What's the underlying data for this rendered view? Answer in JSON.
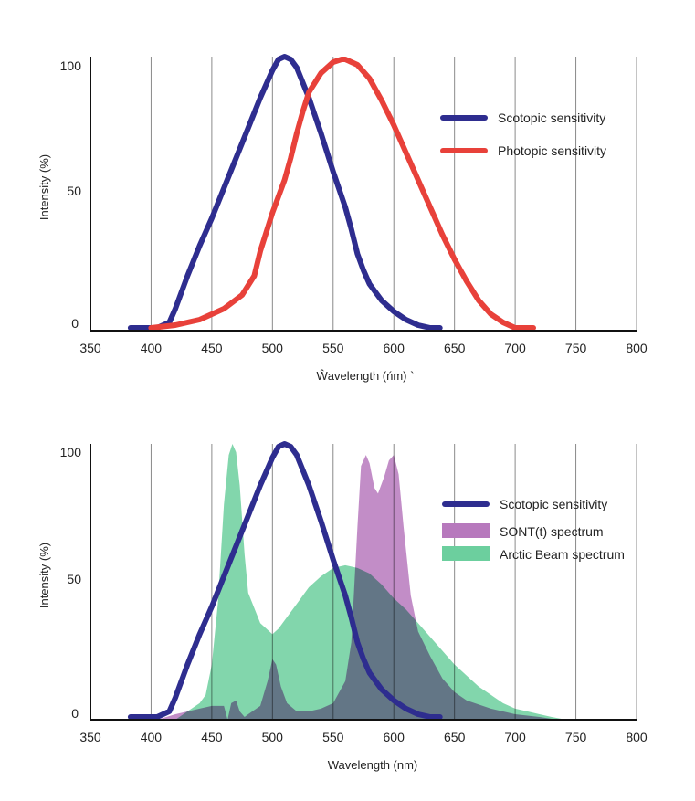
{
  "chart_data": [
    {
      "type": "line",
      "title": "",
      "xlabel": "Wavelength (nm)",
      "ylabel": "Intensity (%)",
      "xlim": [
        350,
        800
      ],
      "ylim": [
        0,
        100
      ],
      "x_ticks": [
        350,
        400,
        450,
        500,
        550,
        600,
        650,
        700,
        750,
        800
      ],
      "y_ticks": [
        0,
        50,
        100
      ],
      "grid": "vertical",
      "legend": "top-right",
      "series": [
        {
          "name": "Scotopic sensitivity",
          "color": "#2e2d8f",
          "kind": "line",
          "points": [
            [
              383,
              1
            ],
            [
              395,
              1
            ],
            [
              405,
              1
            ],
            [
              415,
              3
            ],
            [
              420,
              8
            ],
            [
              430,
              20
            ],
            [
              440,
              31
            ],
            [
              450,
              41
            ],
            [
              460,
              52
            ],
            [
              470,
              63
            ],
            [
              480,
              74
            ],
            [
              490,
              85
            ],
            [
              500,
              95
            ],
            [
              505,
              99
            ],
            [
              510,
              100
            ],
            [
              515,
              99
            ],
            [
              520,
              96
            ],
            [
              530,
              85
            ],
            [
              540,
              72
            ],
            [
              550,
              58
            ],
            [
              560,
              45
            ],
            [
              565,
              37
            ],
            [
              570,
              28
            ],
            [
              575,
              22
            ],
            [
              580,
              17
            ],
            [
              590,
              11
            ],
            [
              600,
              7
            ],
            [
              610,
              4
            ],
            [
              620,
              2
            ],
            [
              630,
              1
            ],
            [
              638,
              1
            ]
          ]
        },
        {
          "name": "Photopic sensitivity",
          "color": "#e8413a",
          "kind": "line",
          "points": [
            [
              400,
              1
            ],
            [
              420,
              2
            ],
            [
              440,
              4
            ],
            [
              460,
              8
            ],
            [
              475,
              13
            ],
            [
              485,
              20
            ],
            [
              490,
              29
            ],
            [
              500,
              43
            ],
            [
              510,
              55
            ],
            [
              515,
              63
            ],
            [
              520,
              72
            ],
            [
              525,
              80
            ],
            [
              530,
              87
            ],
            [
              540,
              94
            ],
            [
              550,
              98
            ],
            [
              557,
              99
            ],
            [
              560,
              99
            ],
            [
              570,
              97
            ],
            [
              580,
              92
            ],
            [
              590,
              84
            ],
            [
              600,
              75
            ],
            [
              610,
              65
            ],
            [
              620,
              55
            ],
            [
              630,
              45
            ],
            [
              640,
              35
            ],
            [
              650,
              26
            ],
            [
              660,
              18
            ],
            [
              670,
              11
            ],
            [
              680,
              6
            ],
            [
              690,
              3
            ],
            [
              700,
              1
            ],
            [
              715,
              1
            ]
          ]
        }
      ]
    },
    {
      "type": "area",
      "title": "",
      "xlabel": "Wavelength (nm)",
      "ylabel": "Intensity (%)",
      "xlim": [
        350,
        800
      ],
      "ylim": [
        0,
        100
      ],
      "x_ticks": [
        350,
        400,
        450,
        500,
        550,
        600,
        650,
        700,
        750,
        800
      ],
      "y_ticks": [
        0,
        50,
        100
      ],
      "grid": "vertical",
      "legend": "top-right",
      "series": [
        {
          "name": "Arctic Beam spectrum",
          "color": "#6ccf9e",
          "kind": "area",
          "points": [
            [
              420,
              0
            ],
            [
              430,
              3
            ],
            [
              440,
              6
            ],
            [
              445,
              9
            ],
            [
              450,
              20
            ],
            [
              455,
              42
            ],
            [
              460,
              78
            ],
            [
              464,
              96
            ],
            [
              467,
              100
            ],
            [
              470,
              97
            ],
            [
              473,
              85
            ],
            [
              477,
              60
            ],
            [
              480,
              46
            ],
            [
              490,
              35
            ],
            [
              500,
              31
            ],
            [
              505,
              33
            ],
            [
              510,
              36
            ],
            [
              520,
              42
            ],
            [
              530,
              48
            ],
            [
              540,
              52
            ],
            [
              550,
              55
            ],
            [
              560,
              56
            ],
            [
              570,
              55
            ],
            [
              580,
              53
            ],
            [
              590,
              49
            ],
            [
              600,
              44
            ],
            [
              610,
              40
            ],
            [
              620,
              35
            ],
            [
              630,
              30
            ],
            [
              640,
              25
            ],
            [
              650,
              20
            ],
            [
              660,
              16
            ],
            [
              670,
              12
            ],
            [
              680,
              9
            ],
            [
              690,
              6
            ],
            [
              700,
              4
            ],
            [
              710,
              3
            ],
            [
              720,
              2
            ],
            [
              730,
              1
            ],
            [
              742,
              0
            ]
          ]
        },
        {
          "name": "SONT(t) spectrum",
          "color": "#b779bd",
          "kind": "area",
          "points": [
            [
              405,
              0
            ],
            [
              420,
              2
            ],
            [
              440,
              4
            ],
            [
              450,
              5
            ],
            [
              460,
              5
            ],
            [
              463,
              0
            ],
            [
              466,
              6
            ],
            [
              470,
              7
            ],
            [
              473,
              3
            ],
            [
              477,
              1
            ],
            [
              480,
              2
            ],
            [
              490,
              5
            ],
            [
              496,
              14
            ],
            [
              500,
              22
            ],
            [
              503,
              20
            ],
            [
              507,
              12
            ],
            [
              512,
              6
            ],
            [
              520,
              3
            ],
            [
              530,
              3
            ],
            [
              540,
              4
            ],
            [
              550,
              6
            ],
            [
              560,
              14
            ],
            [
              565,
              28
            ],
            [
              570,
              70
            ],
            [
              573,
              92
            ],
            [
              577,
              96
            ],
            [
              580,
              93
            ],
            [
              584,
              84
            ],
            [
              587,
              82
            ],
            [
              592,
              88
            ],
            [
              596,
              94
            ],
            [
              600,
              96
            ],
            [
              604,
              89
            ],
            [
              608,
              70
            ],
            [
              614,
              45
            ],
            [
              620,
              32
            ],
            [
              630,
              23
            ],
            [
              640,
              15
            ],
            [
              650,
              10
            ],
            [
              660,
              7
            ],
            [
              680,
              4
            ],
            [
              700,
              2
            ],
            [
              720,
              1
            ],
            [
              735,
              0
            ]
          ]
        },
        {
          "name": "Scotopic sensitivity",
          "color": "#2e2d8f",
          "kind": "line",
          "points": [
            [
              383,
              1
            ],
            [
              395,
              1
            ],
            [
              405,
              1
            ],
            [
              415,
              3
            ],
            [
              420,
              8
            ],
            [
              430,
              20
            ],
            [
              440,
              31
            ],
            [
              450,
              41
            ],
            [
              460,
              52
            ],
            [
              470,
              63
            ],
            [
              480,
              74
            ],
            [
              490,
              85
            ],
            [
              500,
              95
            ],
            [
              505,
              99
            ],
            [
              510,
              100
            ],
            [
              515,
              99
            ],
            [
              520,
              96
            ],
            [
              530,
              85
            ],
            [
              540,
              72
            ],
            [
              550,
              58
            ],
            [
              560,
              45
            ],
            [
              565,
              37
            ],
            [
              570,
              28
            ],
            [
              575,
              22
            ],
            [
              580,
              17
            ],
            [
              590,
              11
            ],
            [
              600,
              7
            ],
            [
              610,
              4
            ],
            [
              620,
              2
            ],
            [
              630,
              1
            ],
            [
              638,
              1
            ]
          ]
        }
      ]
    }
  ],
  "charts": [
    {
      "xlabel": "Ŵavelength (ńm) `",
      "ylabel": "Intensity (%)",
      "x_tick_labels": [
        "350",
        "400",
        "450",
        "500",
        "550",
        "600",
        "650",
        "700",
        "750",
        "800"
      ],
      "y_tick_labels": [
        "0",
        "50",
        "100"
      ],
      "legend": [
        "Scotopic sensitivity",
        "Photopic sensitivity"
      ]
    },
    {
      "xlabel": "Wavelength (nm)",
      "ylabel": "Intensity (%)",
      "x_tick_labels": [
        "350",
        "400",
        "450",
        "500",
        "550",
        "600",
        "650",
        "700",
        "750",
        "800"
      ],
      "y_tick_labels": [
        "0",
        "50",
        "100"
      ],
      "legend": [
        "Scotopic sensitivity",
        "SONT(t) spectrum",
        "Arctic Beam spectrum"
      ]
    }
  ]
}
